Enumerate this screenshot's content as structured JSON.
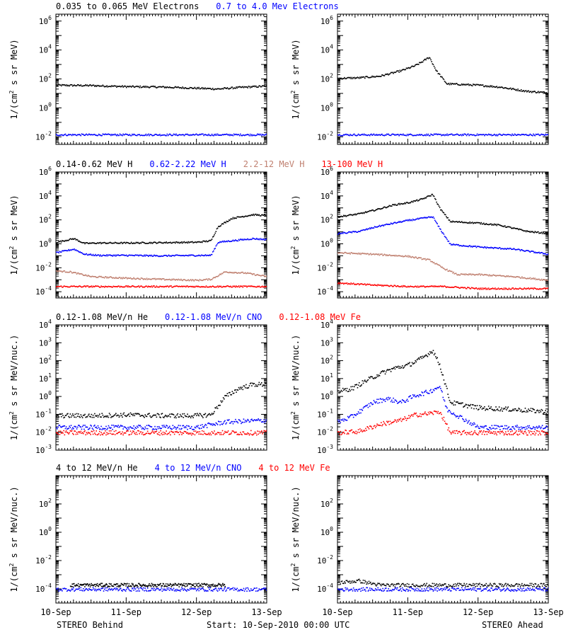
{
  "footer": {
    "left": "STEREO Behind",
    "center": "Start: 10-Sep-2010 00:00 UTC",
    "right": "STEREO Ahead"
  },
  "x_ticks": [
    "10-Sep",
    "11-Sep",
    "12-Sep",
    "13-Sep"
  ],
  "colors": {
    "black": "#000000",
    "blue": "#0000ff",
    "tan": "#c08070",
    "red": "#ff0000"
  },
  "row_titles": [
    [
      {
        "text": "0.035 to 0.065 MeV Electrons",
        "color": "#000000"
      },
      {
        "text": "0.7 to 4.0 Mev Electrons",
        "color": "#0000ff"
      }
    ],
    [
      {
        "text": "0.14-0.62 MeV H",
        "color": "#000000"
      },
      {
        "text": "0.62-2.22 MeV H",
        "color": "#0000ff"
      },
      {
        "text": "2.2-12 MeV H",
        "color": "#c08070"
      },
      {
        "text": "13-100 MeV H",
        "color": "#ff0000"
      }
    ],
    [
      {
        "text": "0.12-1.08 MeV/n He",
        "color": "#000000"
      },
      {
        "text": "0.12-1.08 MeV/n CNO",
        "color": "#0000ff"
      },
      {
        "text": "0.12-1.08 MeV Fe",
        "color": "#ff0000"
      }
    ],
    [
      {
        "text": "4 to 12 MeV/n He",
        "color": "#000000"
      },
      {
        "text": "4 to 12 MeV/n CNO",
        "color": "#0000ff"
      },
      {
        "text": "4 to 12 MeV Fe",
        "color": "#ff0000"
      }
    ]
  ],
  "chart_data": [
    {
      "type": "scatter",
      "row": 0,
      "side": "STEREO Behind",
      "ylabel": "1/(cm2 s sr MeV)",
      "yscale": "log",
      "ylim": [
        0.003,
        3000000
      ],
      "xlim": [
        0,
        3
      ],
      "yticks_exp": [
        -2,
        0,
        2,
        4,
        6
      ],
      "series": [
        {
          "name": "0.035 to 0.065 MeV Electrons",
          "color": "#000000",
          "x": [
            0,
            0.5,
            1,
            1.5,
            2,
            2.3,
            2.6,
            3
          ],
          "y": [
            40,
            38,
            32,
            30,
            25,
            22,
            28,
            35
          ]
        },
        {
          "name": "0.7 to 4.0 Mev Electrons",
          "color": "#0000ff",
          "x": [
            0,
            1,
            2,
            3
          ],
          "y": [
            0.015,
            0.015,
            0.015,
            0.015
          ]
        }
      ]
    },
    {
      "type": "scatter",
      "row": 0,
      "side": "STEREO Ahead",
      "ylabel": "1/(cm2 s sr MeV)",
      "yscale": "log",
      "ylim": [
        0.003,
        3000000
      ],
      "xlim": [
        0,
        3
      ],
      "yticks_exp": [
        -2,
        0,
        2,
        4,
        6
      ],
      "series": [
        {
          "name": "0.035 to 0.065 MeV Electrons",
          "color": "#000000",
          "x": [
            0,
            0.3,
            0.6,
            0.9,
            1.1,
            1.2,
            1.3,
            1.4,
            1.55,
            2.0,
            2.3,
            2.7,
            3.0
          ],
          "y": [
            120,
            130,
            170,
            400,
            900,
            1700,
            3500,
            400,
            50,
            40,
            30,
            15,
            12
          ]
        },
        {
          "name": "0.7 to 4.0 Mev Electrons",
          "color": "#0000ff",
          "x": [
            0,
            1,
            2,
            3
          ],
          "y": [
            0.015,
            0.015,
            0.015,
            0.015
          ]
        }
      ]
    },
    {
      "type": "scatter",
      "row": 1,
      "side": "STEREO Behind",
      "ylabel": "1/(cm2 s sr MeV)",
      "yscale": "log",
      "ylim": [
        3e-05,
        1000000
      ],
      "xlim": [
        0,
        3
      ],
      "yticks_exp": [
        -4,
        -2,
        0,
        2,
        4,
        6
      ],
      "series": [
        {
          "name": "0.14-0.62 MeV H",
          "color": "#000000",
          "x": [
            0,
            0.25,
            0.4,
            0.6,
            1,
            1.5,
            2,
            2.2,
            2.3,
            2.5,
            2.8,
            3.0
          ],
          "y": [
            1.5,
            3,
            1.2,
            1.3,
            1.3,
            1.4,
            1.5,
            2,
            30,
            150,
            300,
            250
          ]
        },
        {
          "name": "0.62-2.22 MeV H",
          "color": "#0000ff",
          "x": [
            0,
            0.25,
            0.4,
            0.6,
            1,
            1.5,
            2,
            2.2,
            2.3,
            2.5,
            2.8,
            3.0
          ],
          "y": [
            0.2,
            0.4,
            0.15,
            0.12,
            0.12,
            0.11,
            0.12,
            0.12,
            1.5,
            2,
            3,
            2.5
          ]
        },
        {
          "name": "2.2-12 MeV H",
          "color": "#c08070",
          "x": [
            0,
            0.2,
            0.5,
            1,
            1.5,
            2,
            2.2,
            2.4,
            2.7,
            3.0
          ],
          "y": [
            0.006,
            0.005,
            0.002,
            0.0015,
            0.0012,
            0.001,
            0.0012,
            0.005,
            0.004,
            0.002
          ]
        },
        {
          "name": "13-100 MeV H",
          "color": "#ff0000",
          "x": [
            0,
            1,
            2,
            3
          ],
          "y": [
            0.0003,
            0.0003,
            0.0003,
            0.0003
          ]
        }
      ]
    },
    {
      "type": "scatter",
      "row": 1,
      "side": "STEREO Ahead",
      "ylabel": "1/(cm2 s sr MeV)",
      "yscale": "log",
      "ylim": [
        3e-05,
        1000000
      ],
      "xlim": [
        0,
        3
      ],
      "yticks_exp": [
        -4,
        -2,
        0,
        2,
        4,
        6
      ],
      "series": [
        {
          "name": "0.14-0.62 MeV H",
          "color": "#000000",
          "x": [
            0,
            0.3,
            0.55,
            0.8,
            1.0,
            1.2,
            1.35,
            1.45,
            1.6,
            2.0,
            2.3,
            2.7,
            3.0
          ],
          "y": [
            200,
            350,
            800,
            2000,
            3000,
            6000,
            15000,
            1000,
            80,
            60,
            40,
            12,
            8
          ]
        },
        {
          "name": "0.62-2.22 MeV H",
          "color": "#0000ff",
          "x": [
            0,
            0.3,
            0.55,
            0.8,
            1.0,
            1.2,
            1.35,
            1.45,
            1.6,
            2.0,
            2.5,
            3.0
          ],
          "y": [
            8,
            12,
            30,
            60,
            100,
            150,
            200,
            20,
            1,
            0.6,
            0.4,
            0.15
          ]
        },
        {
          "name": "2.2-12 MeV H",
          "color": "#c08070",
          "x": [
            0,
            0.5,
            1.0,
            1.3,
            1.5,
            1.7,
            2.0,
            2.5,
            3.0
          ],
          "y": [
            0.2,
            0.15,
            0.1,
            0.05,
            0.01,
            0.003,
            0.003,
            0.002,
            0.001
          ]
        },
        {
          "name": "13-100 MeV H",
          "color": "#ff0000",
          "x": [
            0,
            0.5,
            1,
            1.5,
            2,
            3
          ],
          "y": [
            0.0006,
            0.0004,
            0.0003,
            0.0003,
            0.0002,
            0.0002
          ]
        }
      ]
    },
    {
      "type": "scatter",
      "row": 2,
      "side": "STEREO Behind",
      "ylabel": "1/(cm2 s sr MeV/nuc.)",
      "yscale": "log",
      "ylim": [
        0.001,
        10000
      ],
      "xlim": [
        0,
        3
      ],
      "yticks_exp": [
        -3,
        -2,
        -1,
        0,
        1,
        2,
        3,
        4
      ],
      "series": [
        {
          "name": "0.12-1.08 MeV/n He",
          "color": "#000000",
          "x": [
            0,
            0.5,
            1,
            1.5,
            2,
            2.2,
            2.4,
            2.6,
            2.8,
            3.0
          ],
          "y": [
            0.09,
            0.09,
            0.1,
            0.09,
            0.09,
            0.1,
            1,
            3,
            5,
            5
          ]
        },
        {
          "name": "0.12-1.08 MeV/n CNO",
          "color": "#0000ff",
          "x": [
            0,
            1,
            2,
            2.4,
            3
          ],
          "y": [
            0.02,
            0.02,
            0.02,
            0.04,
            0.05
          ]
        },
        {
          "name": "0.12-1.08 MeV Fe",
          "color": "#ff0000",
          "x": [
            0,
            1,
            2,
            3
          ],
          "y": [
            0.01,
            0.01,
            0.01,
            0.01
          ]
        }
      ]
    },
    {
      "type": "scatter",
      "row": 2,
      "side": "STEREO Ahead",
      "ylabel": "1/(cm2 s sr MeV/nuc.)",
      "yscale": "log",
      "ylim": [
        0.001,
        10000
      ],
      "xlim": [
        0,
        3
      ],
      "yticks_exp": [
        -3,
        -2,
        -1,
        0,
        1,
        2,
        3,
        4
      ],
      "series": [
        {
          "name": "0.12-1.08 MeV/n He",
          "color": "#000000",
          "x": [
            0,
            0.2,
            0.4,
            0.6,
            0.8,
            1.0,
            1.2,
            1.35,
            1.45,
            1.6,
            2.0,
            2.5,
            3.0
          ],
          "y": [
            2,
            3,
            8,
            20,
            40,
            60,
            150,
            400,
            60,
            0.5,
            0.25,
            0.2,
            0.15
          ]
        },
        {
          "name": "0.12-1.08 MeV/n CNO",
          "color": "#0000ff",
          "x": [
            0,
            0.2,
            0.5,
            0.7,
            0.9,
            1.1,
            1.3,
            1.45,
            1.55,
            2.0,
            3.0
          ],
          "y": [
            0.04,
            0.08,
            0.5,
            0.8,
            0.5,
            1.2,
            2,
            4,
            0.2,
            0.02,
            0.02
          ]
        },
        {
          "name": "0.12-1.08 MeV Fe",
          "color": "#ff0000",
          "x": [
            0,
            0.3,
            0.6,
            0.9,
            1.1,
            1.3,
            1.45,
            1.6,
            2.0,
            3.0
          ],
          "y": [
            0.01,
            0.012,
            0.03,
            0.05,
            0.1,
            0.12,
            0.15,
            0.01,
            0.01,
            0.01
          ]
        }
      ]
    },
    {
      "type": "scatter",
      "row": 3,
      "side": "STEREO Behind",
      "ylabel": "1/(cm2 s sr MeV/nuc.)",
      "yscale": "log",
      "ylim": [
        1e-05,
        10000
      ],
      "xlim": [
        0,
        3
      ],
      "yticks_exp": [
        -4,
        -2,
        0,
        2
      ],
      "series": [
        {
          "name": "4 to 12 MeV/n He",
          "color": "#000000",
          "x": [
            0.2,
            0.6,
            1.2,
            1.6,
            2.0,
            2.4
          ],
          "y": [
            0.0002,
            0.0002,
            0.0002,
            0.0002,
            0.0002,
            0.0002
          ]
        },
        {
          "name": "4 to 12 MeV/n CNO",
          "color": "#0000ff",
          "x": [
            0,
            1,
            2,
            3
          ],
          "y": [
            0.0001,
            0.0001,
            0.0001,
            0.0001
          ]
        }
      ]
    },
    {
      "type": "scatter",
      "row": 3,
      "side": "STEREO Ahead",
      "ylabel": "1/(cm2 s sr MeV/nuc.)",
      "yscale": "log",
      "ylim": [
        1e-05,
        10000
      ],
      "xlim": [
        0,
        3
      ],
      "yticks_exp": [
        -4,
        -2,
        0,
        2
      ],
      "series": [
        {
          "name": "4 to 12 MeV/n He",
          "color": "#000000",
          "x": [
            0,
            0.3,
            0.6,
            1.0,
            1.5,
            2.0,
            2.5,
            3.0
          ],
          "y": [
            0.0003,
            0.0004,
            0.0002,
            0.0002,
            0.0002,
            0.0002,
            0.0002,
            0.0002
          ]
        },
        {
          "name": "4 to 12 MeV/n CNO",
          "color": "#0000ff",
          "x": [
            0,
            1,
            2,
            3
          ],
          "y": [
            0.0001,
            0.0001,
            0.0001,
            0.0001
          ]
        }
      ]
    }
  ]
}
